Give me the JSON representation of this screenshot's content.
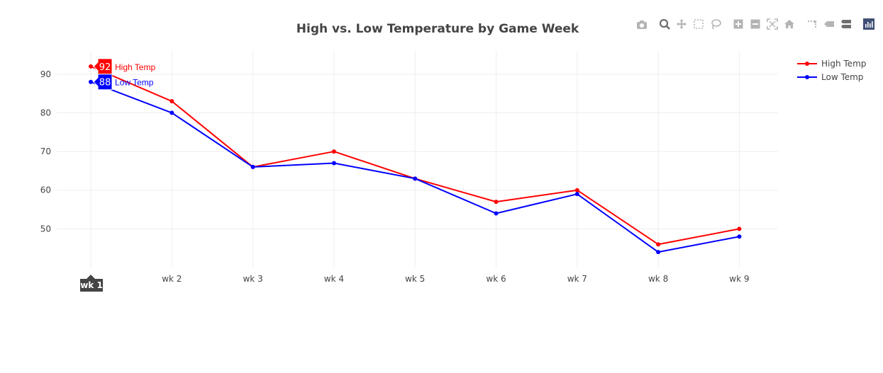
{
  "chart_data": {
    "type": "line",
    "title": "High vs. Low Temperature by Game Week",
    "xlabel": "",
    "ylabel": "",
    "categories": [
      "wk 1",
      "wk 2",
      "wk 3",
      "wk 4",
      "wk 5",
      "wk 6",
      "wk 7",
      "wk 8",
      "wk 9"
    ],
    "ylim": [
      40,
      96
    ],
    "yticks": [
      50,
      60,
      70,
      80,
      90
    ],
    "grid": true,
    "legend_position": "top-right",
    "series": [
      {
        "name": "High Temp",
        "color": "#ff0000",
        "values": [
          92,
          83,
          66,
          70,
          63,
          57,
          60,
          46,
          50
        ]
      },
      {
        "name": "Low Temp",
        "color": "#0000ff",
        "values": [
          88,
          80,
          66,
          67,
          63,
          54,
          59,
          44,
          48
        ]
      }
    ],
    "hover": {
      "category": "wk 1",
      "labels": [
        {
          "series": "High Temp",
          "value": "92"
        },
        {
          "series": "Low Temp",
          "value": "88"
        }
      ]
    }
  },
  "modebar": {
    "icons": [
      "camera-icon",
      "zoom-icon",
      "pan-icon",
      "box-select-icon",
      "lasso-icon",
      "zoom-in-icon",
      "zoom-out-icon",
      "autoscale-icon",
      "reset-axes-icon",
      "spike-lines-icon",
      "hover-closest-icon",
      "hover-compare-icon",
      "plotly-logo-icon"
    ],
    "colors": {
      "icon": "#b4b4b4",
      "icon_active": "#6f6f6f",
      "logo": "#3f4f75"
    }
  }
}
